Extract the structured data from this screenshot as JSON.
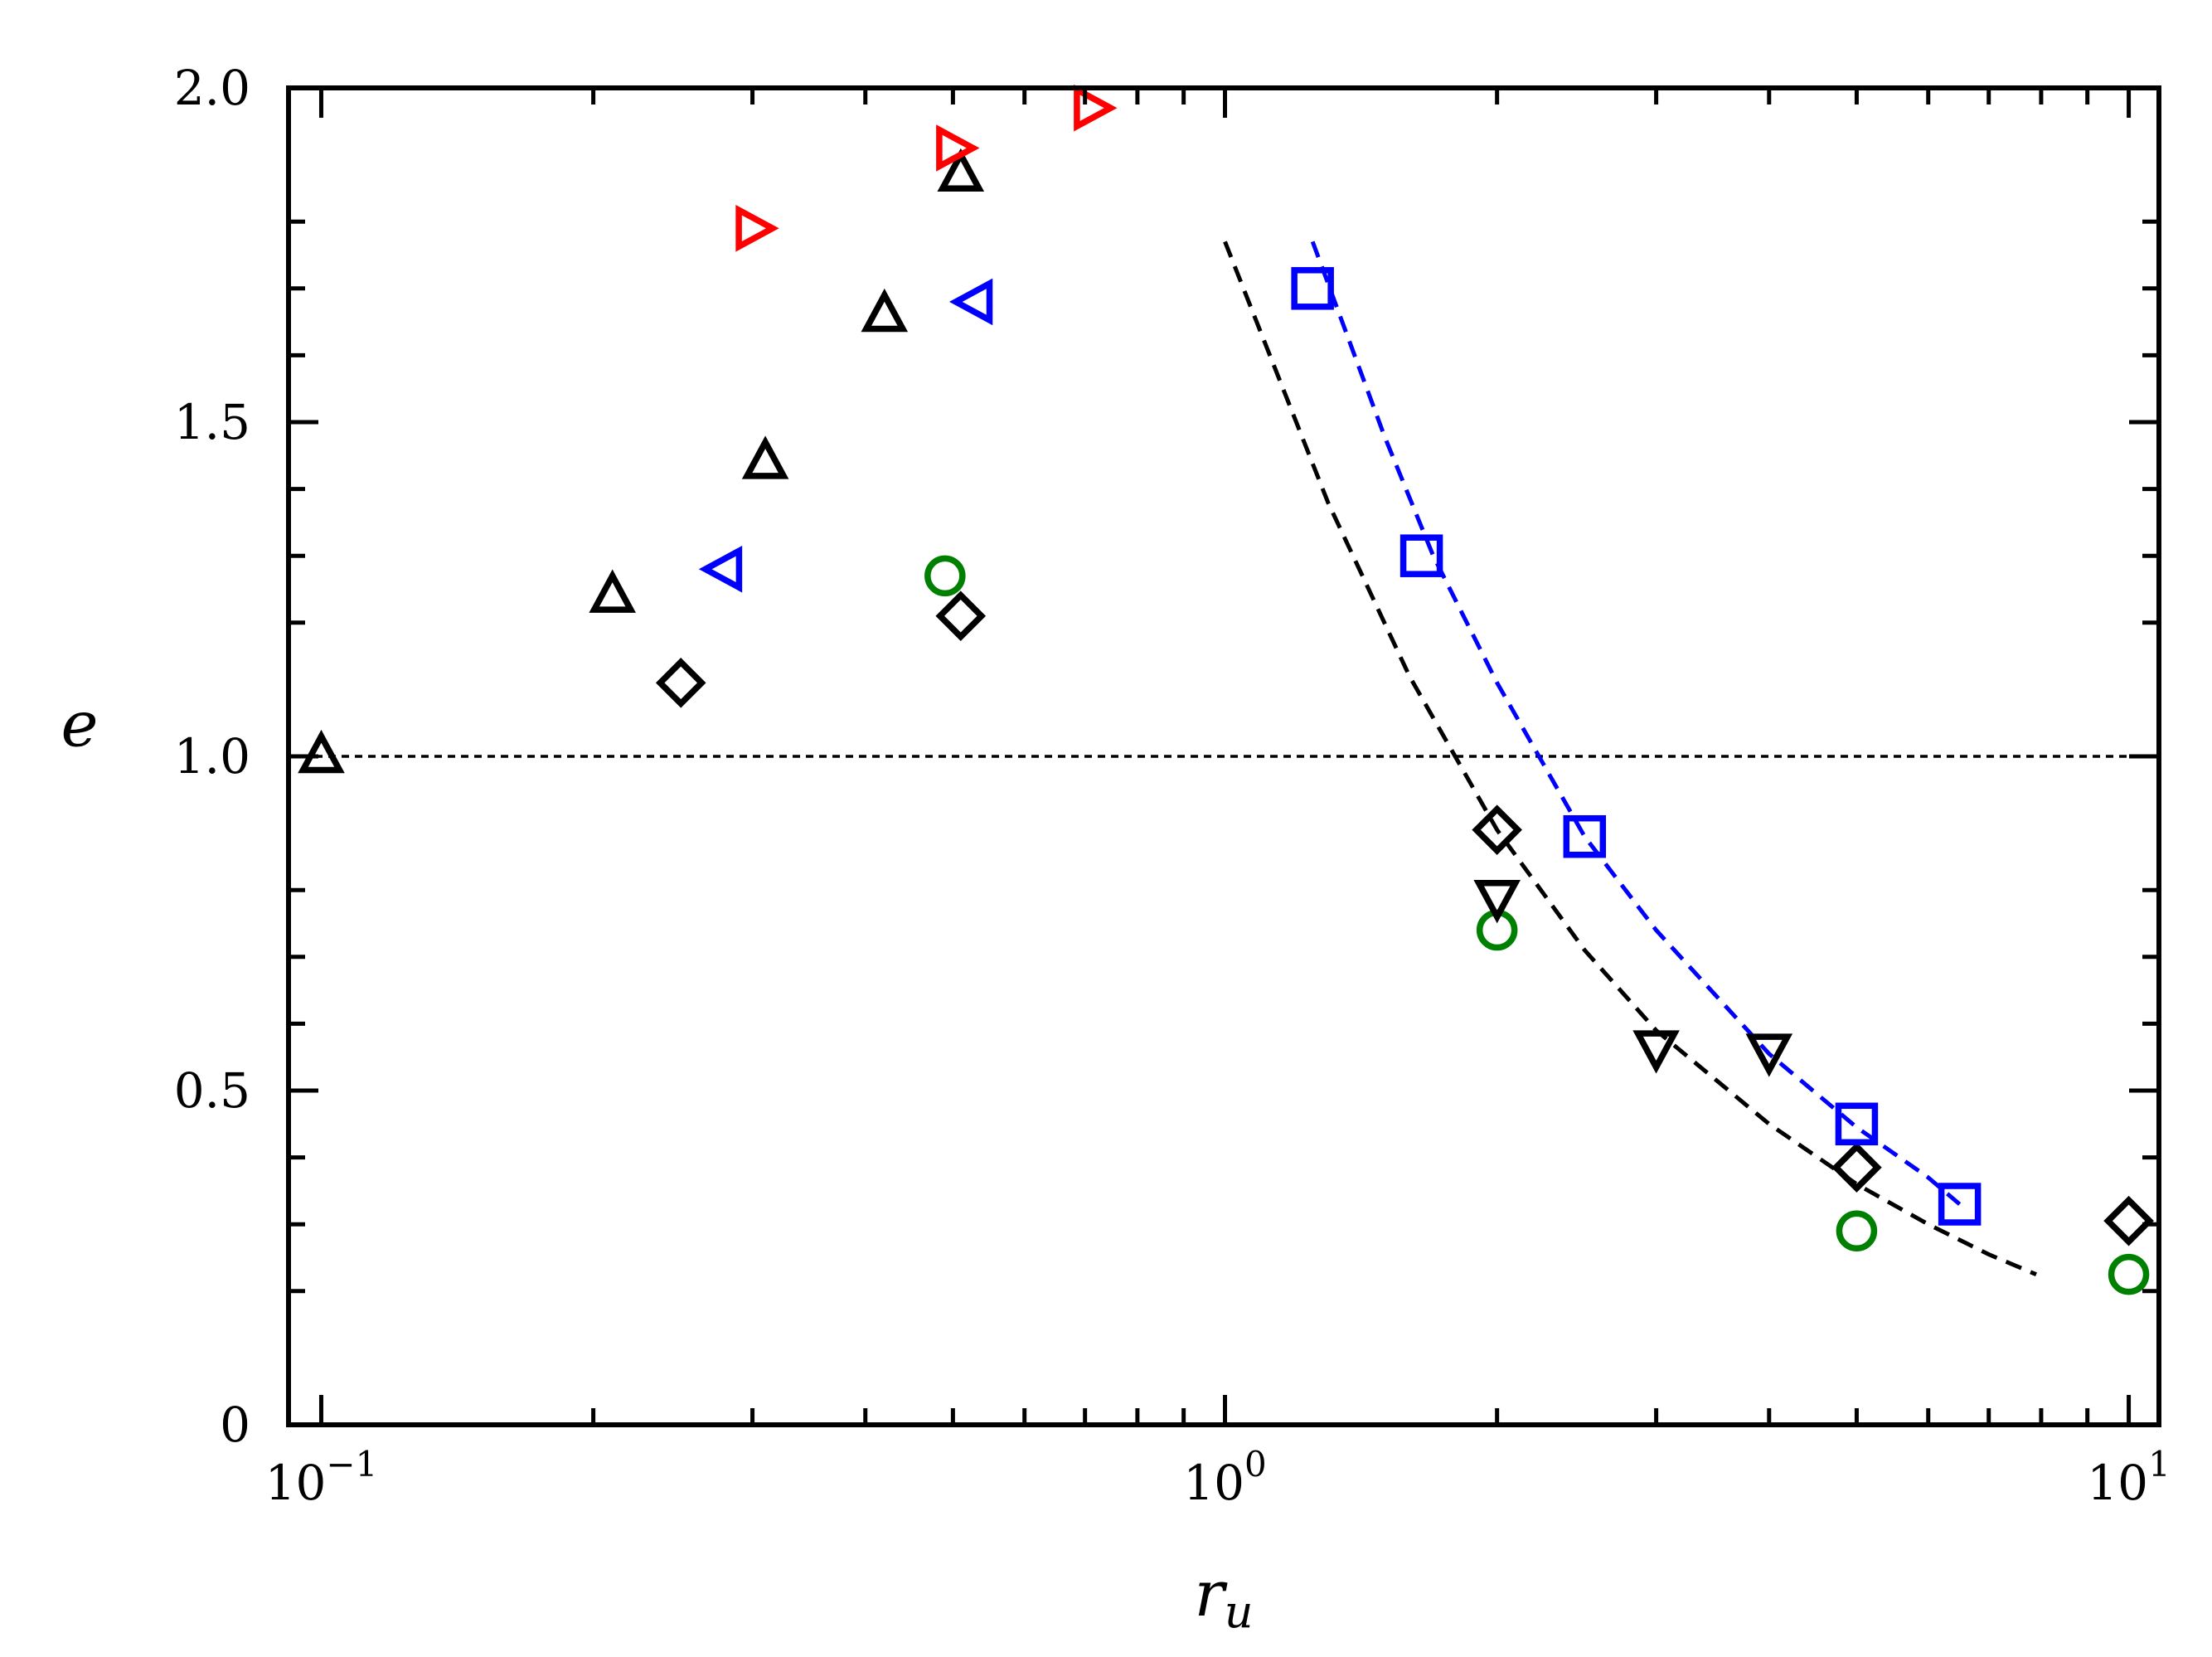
{
  "chart_data": {
    "type": "scatter",
    "title": "",
    "xlabel": "r",
    "xlabel_subscript": "u",
    "ylabel": "e",
    "xscale": "log",
    "xlim": [
      0.092,
      10.8
    ],
    "ylim": [
      0,
      2.0
    ],
    "grid": false,
    "legend": "none",
    "y_major_ticks": [
      0,
      0.5,
      1.0,
      1.5,
      2.0
    ],
    "y_tick_labels": [
      "0",
      "0.5",
      "1.0",
      "1.5",
      "2.0"
    ],
    "y_minor_ticks": [
      0.2,
      0.3,
      0.4,
      0.6,
      0.7,
      0.8,
      1.2,
      1.3,
      1.4,
      1.6,
      1.7,
      1.8
    ],
    "x_major_ticks": [
      0.1,
      1,
      10
    ],
    "x_tick_labels": [
      {
        "base": "10",
        "exp": "−1"
      },
      {
        "base": "10",
        "exp": "0"
      },
      {
        "base": "10",
        "exp": "1"
      }
    ],
    "x_minor_ticks": [
      0.2,
      0.3,
      0.4,
      0.5,
      0.6,
      0.7,
      0.8,
      0.9,
      2,
      3,
      4,
      5,
      6,
      7,
      8,
      9
    ],
    "reference_lines": [
      {
        "orientation": "horizontal",
        "y": 1.0,
        "color": "#000000",
        "style": "dotted"
      }
    ],
    "curves": [
      {
        "color": "#000000",
        "style": "dashed",
        "x": [
          1.0,
          1.3,
          1.6,
          2.0,
          2.5,
          3.0,
          4.0,
          5.0,
          6.0,
          7.0,
          7.9
        ],
        "y": [
          1.77,
          1.38,
          1.12,
          0.89,
          0.71,
          0.59,
          0.45,
          0.36,
          0.3,
          0.255,
          0.225
        ]
      },
      {
        "color": "#0000ff",
        "style": "dashed",
        "x": [
          1.25,
          1.5,
          1.7,
          2.0,
          2.5,
          3.0,
          4.0,
          5.0,
          6.0,
          6.5
        ],
        "y": [
          1.77,
          1.48,
          1.3,
          1.11,
          0.88,
          0.74,
          0.555,
          0.445,
          0.37,
          0.33
        ]
      }
    ],
    "series": [
      {
        "marker": "triangle-up",
        "color": "#000000",
        "x": [
          0.1,
          0.21,
          0.31,
          0.42,
          0.51
        ],
        "y": [
          1.0,
          1.24,
          1.44,
          1.66,
          1.87
        ]
      },
      {
        "marker": "triangle-right",
        "color": "#ff0000",
        "x": [
          0.3,
          0.5,
          0.71
        ],
        "y": [
          1.79,
          1.91,
          1.97
        ]
      },
      {
        "marker": "triangle-left",
        "color": "#0000ff",
        "x": [
          0.28,
          0.53
        ],
        "y": [
          1.28,
          1.68
        ]
      },
      {
        "marker": "circle",
        "color": "#008000",
        "x": [
          0.49,
          2.0,
          5.0,
          10.0
        ],
        "y": [
          1.27,
          0.74,
          0.29,
          0.225
        ]
      },
      {
        "marker": "diamond",
        "color": "#000000",
        "x": [
          0.25,
          0.51,
          2.0,
          5.0,
          10.0
        ],
        "y": [
          1.11,
          1.21,
          0.89,
          0.385,
          0.305
        ]
      },
      {
        "marker": "triangle-down",
        "color": "#000000",
        "x": [
          2.0,
          3.0,
          4.0
        ],
        "y": [
          0.79,
          0.565,
          0.56
        ]
      },
      {
        "marker": "square",
        "color": "#0000ff",
        "x": [
          1.25,
          1.65,
          2.5,
          5.0,
          6.5
        ],
        "y": [
          1.7,
          1.3,
          0.88,
          0.45,
          0.33
        ]
      }
    ]
  }
}
